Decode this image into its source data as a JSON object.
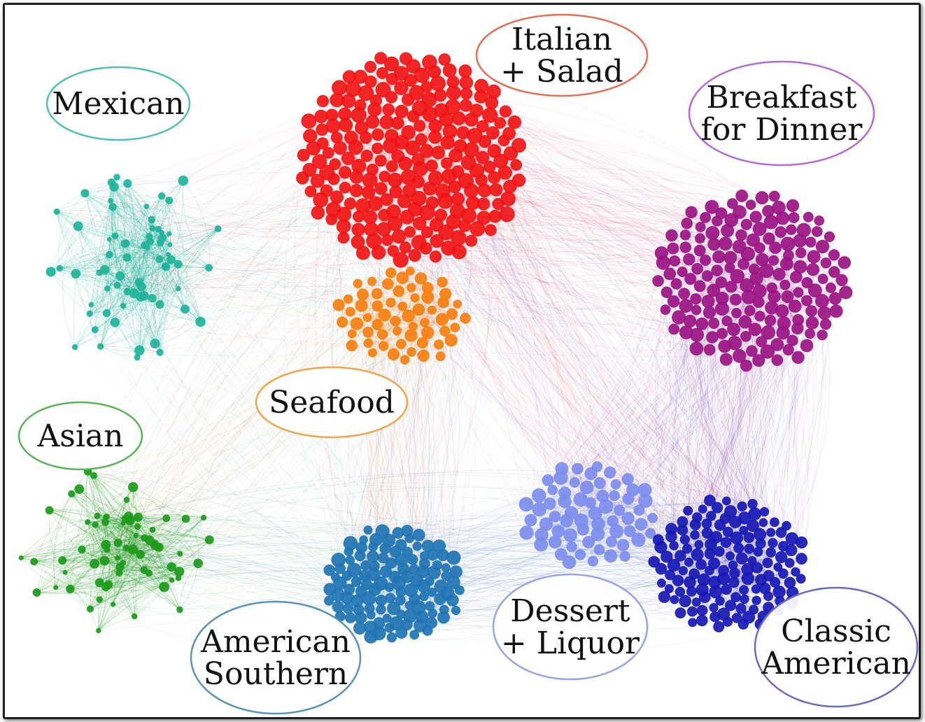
{
  "clusters": [
    {
      "id": "mexican",
      "label": [
        "Mexican"
      ],
      "color": "#1fb39b"
    },
    {
      "id": "asian",
      "label": [
        "Asian"
      ],
      "color": "#1c9a1c"
    },
    {
      "id": "italian",
      "label": [
        "Italian",
        "+ Salad"
      ],
      "color": "#f01414"
    },
    {
      "id": "seafood",
      "label": [
        "Seafood"
      ],
      "color": "#f57f0f"
    },
    {
      "id": "breakfast",
      "label": [
        "Breakfast",
        "for Dinner"
      ],
      "color": "#9a1383"
    },
    {
      "id": "southern",
      "label": [
        "American",
        "Southern"
      ],
      "color": "#1f74b3"
    },
    {
      "id": "dessert",
      "label": [
        "Dessert",
        "+ Liquor"
      ],
      "color": "#7d8ded"
    },
    {
      "id": "classic",
      "label": [
        "Classic",
        "American"
      ],
      "color": "#1718b4"
    }
  ],
  "label_border_colors": {
    "mexican": "#4fc2b1",
    "asian": "#59b459",
    "italian": "#e56c55",
    "seafood": "#f0a54a",
    "breakfast": "#b36ad6",
    "southern": "#5a93b5",
    "dessert": "#9aa3e6",
    "classic": "#6a6ac2"
  }
}
